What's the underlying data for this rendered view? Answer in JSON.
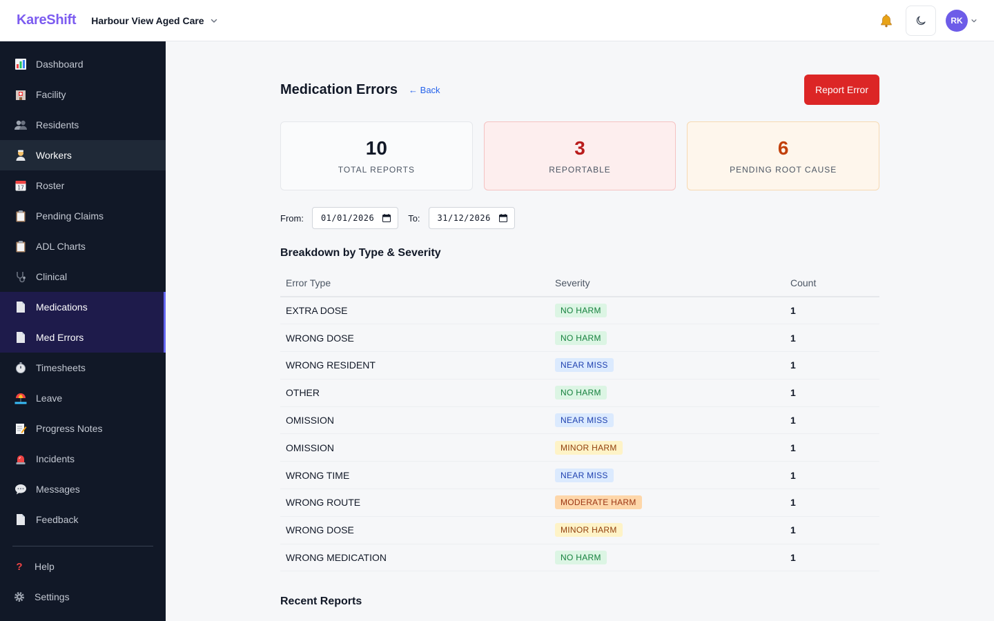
{
  "header": {
    "brand": "KareShift",
    "facility": "Harbour View Aged Care",
    "user_initials": "RK"
  },
  "sidebar": {
    "items": [
      {
        "label": "Dashboard",
        "icon": "bar-chart-icon"
      },
      {
        "label": "Facility",
        "icon": "hospital-icon"
      },
      {
        "label": "Residents",
        "icon": "people-icon"
      },
      {
        "label": "Workers",
        "icon": "health-worker-icon"
      },
      {
        "label": "Roster",
        "icon": "calendar-icon"
      },
      {
        "label": "Pending Claims",
        "icon": "clipboard-icon"
      },
      {
        "label": "ADL Charts",
        "icon": "clipboard-icon"
      },
      {
        "label": "Clinical",
        "icon": "stethoscope-icon"
      },
      {
        "label": "Medications",
        "icon": "document-icon"
      },
      {
        "label": "Med Errors",
        "icon": "document-icon"
      },
      {
        "label": "Timesheets",
        "icon": "stopwatch-icon"
      },
      {
        "label": "Leave",
        "icon": "beach-icon"
      },
      {
        "label": "Progress Notes",
        "icon": "memo-icon"
      },
      {
        "label": "Incidents",
        "icon": "siren-icon"
      },
      {
        "label": "Messages",
        "icon": "speech-bubble-icon"
      },
      {
        "label": "Feedback",
        "icon": "document-icon"
      }
    ],
    "bottom": [
      {
        "label": "Help",
        "icon": "question-icon"
      },
      {
        "label": "Settings",
        "icon": "gear-icon"
      }
    ]
  },
  "page": {
    "title": "Medication Errors",
    "back_label": "← Back",
    "report_button": "Report Error"
  },
  "stats": [
    {
      "value": "10",
      "label": "TOTAL REPORTS"
    },
    {
      "value": "3",
      "label": "REPORTABLE"
    },
    {
      "value": "6",
      "label": "PENDING ROOT CAUSE"
    }
  ],
  "filters": {
    "from_label": "From:",
    "from_value": "01/01/2026",
    "to_label": "To:",
    "to_value": "31/12/2026"
  },
  "breakdown": {
    "title": "Breakdown by Type & Severity",
    "columns": [
      "Error Type",
      "Severity",
      "Count"
    ],
    "rows": [
      {
        "type": "EXTRA DOSE",
        "severity": "NO HARM",
        "count": "1"
      },
      {
        "type": "WRONG DOSE",
        "severity": "NO HARM",
        "count": "1"
      },
      {
        "type": "WRONG RESIDENT",
        "severity": "NEAR MISS",
        "count": "1"
      },
      {
        "type": "OTHER",
        "severity": "NO HARM",
        "count": "1"
      },
      {
        "type": "OMISSION",
        "severity": "NEAR MISS",
        "count": "1"
      },
      {
        "type": "OMISSION",
        "severity": "MINOR HARM",
        "count": "1"
      },
      {
        "type": "WRONG TIME",
        "severity": "NEAR MISS",
        "count": "1"
      },
      {
        "type": "WRONG ROUTE",
        "severity": "MODERATE HARM",
        "count": "1"
      },
      {
        "type": "WRONG DOSE",
        "severity": "MINOR HARM",
        "count": "1"
      },
      {
        "type": "WRONG MEDICATION",
        "severity": "NO HARM",
        "count": "1"
      }
    ]
  },
  "recent": {
    "title": "Recent Reports"
  },
  "colors": {
    "brand": "#7c5cf0",
    "danger": "#dc2626",
    "sidebar_bg": "#111827",
    "active_accent": "#6366f1"
  }
}
